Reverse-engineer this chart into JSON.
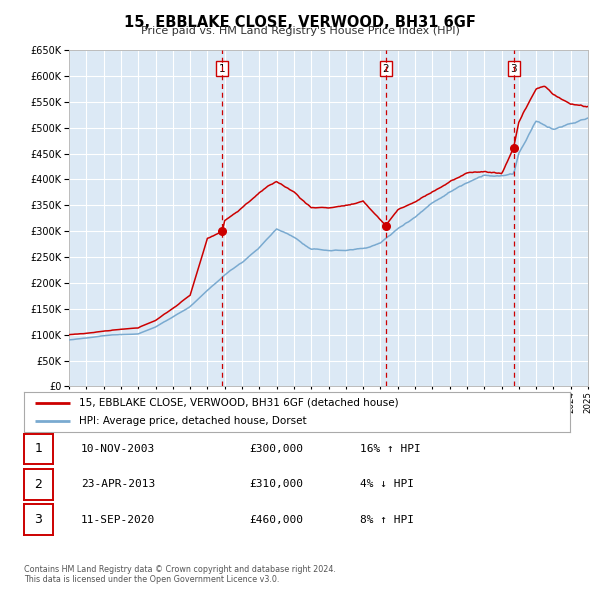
{
  "title": "15, EBBLAKE CLOSE, VERWOOD, BH31 6GF",
  "subtitle": "Price paid vs. HM Land Registry's House Price Index (HPI)",
  "legend_label_red": "15, EBBLAKE CLOSE, VERWOOD, BH31 6GF (detached house)",
  "legend_label_blue": "HPI: Average price, detached house, Dorset",
  "transactions": [
    {
      "num": 1,
      "date": "10-NOV-2003",
      "year": 2003.86,
      "price": 300000,
      "hpi_pct": "16’ ↑ HPI",
      "hpi_str": "16% ↑ HPI"
    },
    {
      "num": 2,
      "date": "23-APR-2013",
      "year": 2013.31,
      "price": 310000,
      "hpi_pct": "4% ↓ HPI",
      "hpi_str": "4% ↓ HPI"
    },
    {
      "num": 3,
      "date": "11-SEP-2020",
      "year": 2020.7,
      "price": 460000,
      "hpi_pct": "8% ↑ HPI",
      "hpi_str": "8% ↑ HPI"
    }
  ],
  "footer1": "Contains HM Land Registry data © Crown copyright and database right 2024.",
  "footer2": "This data is licensed under the Open Government Licence v3.0.",
  "background_color": "#ffffff",
  "chart_bg_color": "#dce9f5",
  "grid_color": "#ffffff",
  "red_line_color": "#cc0000",
  "blue_line_color": "#7aaad0",
  "vline_color": "#cc0000",
  "ylim_min": 0,
  "ylim_max": 650000,
  "xlim_start": 1995,
  "xlim_end": 2025
}
